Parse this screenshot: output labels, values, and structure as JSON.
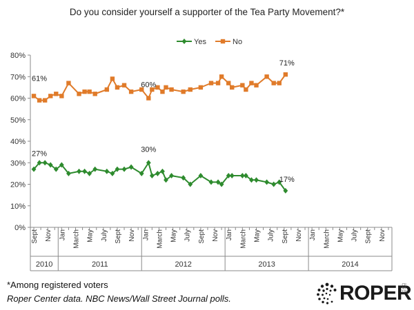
{
  "chart_data": {
    "type": "line",
    "title": "Do you consider yourself a supporter of the Tea Party Movement?*",
    "ylim": [
      0,
      80
    ],
    "yticks": [
      "0%",
      "10%",
      "20%",
      "30%",
      "40%",
      "50%",
      "60%",
      "70%",
      "80%"
    ],
    "grid": false,
    "legend_placement": "top",
    "month_labels": [
      {
        "label": "Sept",
        "x": 0
      },
      {
        "label": "Nov",
        "x": 2
      },
      {
        "label": "Jan",
        "x": 4
      },
      {
        "label": "March",
        "x": 6
      },
      {
        "label": "May",
        "x": 8
      },
      {
        "label": "July",
        "x": 10
      },
      {
        "label": "Sept",
        "x": 12
      },
      {
        "label": "Nov",
        "x": 14
      },
      {
        "label": "Jan",
        "x": 16
      },
      {
        "label": "March",
        "x": 18
      },
      {
        "label": "May",
        "x": 20
      },
      {
        "label": "July",
        "x": 22
      },
      {
        "label": "Sept",
        "x": 24
      },
      {
        "label": "Nov",
        "x": 26
      },
      {
        "label": "Jan",
        "x": 28
      },
      {
        "label": "March",
        "x": 30
      },
      {
        "label": "May",
        "x": 32
      },
      {
        "label": "July",
        "x": 34
      },
      {
        "label": "Sept",
        "x": 36
      },
      {
        "label": "Nov",
        "x": 38
      },
      {
        "label": "Jan",
        "x": 40
      },
      {
        "label": "March",
        "x": 42
      },
      {
        "label": "May",
        "x": 44
      },
      {
        "label": "July",
        "x": 46
      },
      {
        "label": "Sept",
        "x": 48
      },
      {
        "label": "Nov",
        "x": 50
      }
    ],
    "years": [
      {
        "label": "2010",
        "start": -0.5,
        "end": 3.5
      },
      {
        "label": "2011",
        "start": 3.5,
        "end": 15.5
      },
      {
        "label": "2012",
        "start": 15.5,
        "end": 27.5
      },
      {
        "label": "2013",
        "start": 27.5,
        "end": 39.5
      },
      {
        "label": "2014",
        "start": 39.5,
        "end": 51.5
      }
    ],
    "series": [
      {
        "name": "Yes",
        "color": "#2e8b2e",
        "marker": "diamond",
        "points": [
          [
            0,
            27
          ],
          [
            0.8,
            30
          ],
          [
            1.6,
            30
          ],
          [
            2.4,
            29
          ],
          [
            3.2,
            27
          ],
          [
            4.0,
            29
          ],
          [
            5.0,
            25
          ],
          [
            6.5,
            26
          ],
          [
            7.3,
            26
          ],
          [
            8.0,
            25
          ],
          [
            8.8,
            27
          ],
          [
            10.5,
            26
          ],
          [
            11.3,
            25
          ],
          [
            12.0,
            27
          ],
          [
            13.0,
            27
          ],
          [
            14.0,
            28
          ],
          [
            15.5,
            25
          ],
          [
            16.5,
            30
          ],
          [
            17.0,
            24
          ],
          [
            17.8,
            25
          ],
          [
            18.5,
            26
          ],
          [
            19.0,
            22
          ],
          [
            19.8,
            24
          ],
          [
            21.5,
            23
          ],
          [
            22.5,
            20
          ],
          [
            24.0,
            24
          ],
          [
            25.5,
            21
          ],
          [
            26.5,
            21
          ],
          [
            27.0,
            20
          ],
          [
            28.0,
            24
          ],
          [
            28.5,
            24
          ],
          [
            30.0,
            24
          ],
          [
            30.5,
            24
          ],
          [
            31.3,
            22
          ],
          [
            32.0,
            22
          ],
          [
            33.5,
            21
          ],
          [
            34.5,
            20
          ],
          [
            35.3,
            21
          ],
          [
            36.2,
            17
          ]
        ]
      },
      {
        "name": "No",
        "color": "#e07b2a",
        "marker": "square",
        "points": [
          [
            0,
            61
          ],
          [
            0.8,
            59
          ],
          [
            1.6,
            59
          ],
          [
            2.4,
            61
          ],
          [
            3.2,
            62
          ],
          [
            4.0,
            61
          ],
          [
            5.0,
            67
          ],
          [
            6.5,
            62
          ],
          [
            7.3,
            63
          ],
          [
            8.0,
            63
          ],
          [
            8.8,
            62
          ],
          [
            10.5,
            64
          ],
          [
            11.3,
            69
          ],
          [
            12.0,
            65
          ],
          [
            13.0,
            66
          ],
          [
            14.0,
            63
          ],
          [
            15.5,
            64
          ],
          [
            16.5,
            60
          ],
          [
            17.0,
            64
          ],
          [
            17.8,
            65
          ],
          [
            18.5,
            63
          ],
          [
            19.0,
            65
          ],
          [
            19.8,
            64
          ],
          [
            21.5,
            63
          ],
          [
            22.5,
            64
          ],
          [
            24.0,
            65
          ],
          [
            25.5,
            67
          ],
          [
            26.5,
            67
          ],
          [
            27.0,
            70
          ],
          [
            28.0,
            67
          ],
          [
            28.5,
            65
          ],
          [
            30.0,
            66
          ],
          [
            30.5,
            64
          ],
          [
            31.3,
            67
          ],
          [
            32.0,
            66
          ],
          [
            33.5,
            70
          ],
          [
            34.5,
            67
          ],
          [
            35.3,
            67
          ],
          [
            36.2,
            71
          ]
        ]
      }
    ],
    "annotations": [
      {
        "text": "61%",
        "series": "No",
        "at": "start"
      },
      {
        "text": "60%",
        "series": "No",
        "at": "peak-2012"
      },
      {
        "text": "71%",
        "series": "No",
        "at": "end"
      },
      {
        "text": "27%",
        "series": "Yes",
        "at": "start"
      },
      {
        "text": "30%",
        "series": "Yes",
        "at": "peak-2012"
      },
      {
        "text": "17%",
        "series": "Yes",
        "at": "end"
      }
    ]
  },
  "footnote": "*Among registered voters",
  "source": "Roper Center data. NBC News/Wall Street Journal polls.",
  "logo": {
    "name": "ROPER",
    "sub": "CENTER"
  }
}
